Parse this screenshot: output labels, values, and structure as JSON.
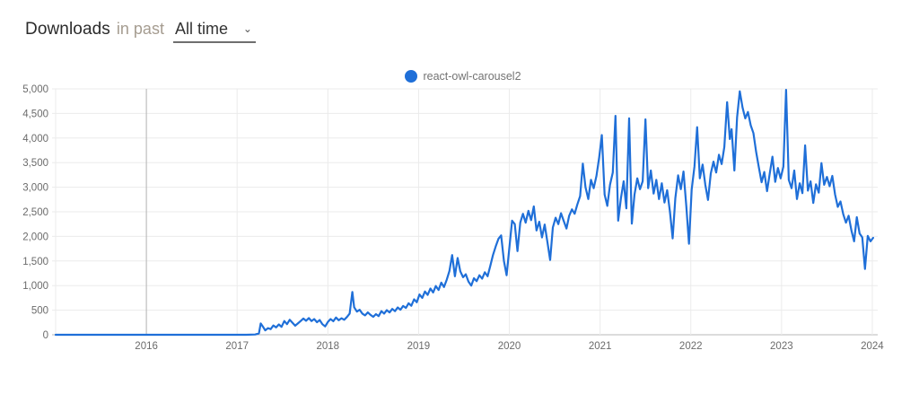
{
  "header": {
    "title": "Downloads",
    "subtitle": "in past",
    "range_value": "All time"
  },
  "legend": {
    "series_label": "react-owl-carousel2"
  },
  "colors": {
    "series_blue": "#1f6fd8",
    "axis_label": "#6b6b6b",
    "gridline": "#ebebeb",
    "gridline_emphasis": "#b3b3b3",
    "baseline": "#b9b9b9"
  },
  "chart_data": {
    "type": "line",
    "title": "",
    "xlabel": "",
    "ylabel": "",
    "xlim": [
      2015,
      2024.06
    ],
    "ylim": [
      0,
      5000
    ],
    "grid": true,
    "legend_position": "top-center",
    "x_ticks": [
      {
        "value": 2016,
        "label": "2016",
        "emphasis": true
      },
      {
        "value": 2017,
        "label": "2017",
        "emphasis": false
      },
      {
        "value": 2018,
        "label": "2018",
        "emphasis": false
      },
      {
        "value": 2019,
        "label": "2019",
        "emphasis": false
      },
      {
        "value": 2020,
        "label": "2020",
        "emphasis": false
      },
      {
        "value": 2021,
        "label": "2021",
        "emphasis": false
      },
      {
        "value": 2022,
        "label": "2022",
        "emphasis": false
      },
      {
        "value": 2023,
        "label": "2023",
        "emphasis": false
      },
      {
        "value": 2024,
        "label": "2024",
        "emphasis": false
      }
    ],
    "x_grid_extra": [
      2015
    ],
    "y_ticks": [
      {
        "value": 0,
        "label": "0"
      },
      {
        "value": 500,
        "label": "500"
      },
      {
        "value": 1000,
        "label": "1,000"
      },
      {
        "value": 1500,
        "label": "1,500"
      },
      {
        "value": 2000,
        "label": "2,000"
      },
      {
        "value": 2500,
        "label": "2,500"
      },
      {
        "value": 3000,
        "label": "3,000"
      },
      {
        "value": 3500,
        "label": "3,500"
      },
      {
        "value": 4000,
        "label": "4,000"
      },
      {
        "value": 4500,
        "label": "4,500"
      },
      {
        "value": 5000,
        "label": "5,000"
      }
    ],
    "series": [
      {
        "name": "react-owl-carousel2",
        "color": "#1f6fd8",
        "points": [
          [
            2015.0,
            0
          ],
          [
            2015.2,
            0
          ],
          [
            2015.4,
            0
          ],
          [
            2015.6,
            0
          ],
          [
            2015.8,
            0
          ],
          [
            2016.0,
            0
          ],
          [
            2016.2,
            0
          ],
          [
            2016.4,
            0
          ],
          [
            2016.6,
            0
          ],
          [
            2016.8,
            0
          ],
          [
            2017.0,
            0
          ],
          [
            2017.1,
            0
          ],
          [
            2017.2,
            5
          ],
          [
            2017.24,
            30
          ],
          [
            2017.26,
            230
          ],
          [
            2017.29,
            150
          ],
          [
            2017.31,
            90
          ],
          [
            2017.34,
            135
          ],
          [
            2017.37,
            115
          ],
          [
            2017.4,
            190
          ],
          [
            2017.43,
            150
          ],
          [
            2017.46,
            210
          ],
          [
            2017.49,
            160
          ],
          [
            2017.52,
            280
          ],
          [
            2017.55,
            215
          ],
          [
            2017.58,
            305
          ],
          [
            2017.61,
            245
          ],
          [
            2017.64,
            185
          ],
          [
            2017.67,
            230
          ],
          [
            2017.7,
            280
          ],
          [
            2017.73,
            330
          ],
          [
            2017.76,
            285
          ],
          [
            2017.79,
            340
          ],
          [
            2017.82,
            280
          ],
          [
            2017.85,
            320
          ],
          [
            2017.88,
            255
          ],
          [
            2017.91,
            300
          ],
          [
            2017.94,
            215
          ],
          [
            2017.97,
            170
          ],
          [
            2018.0,
            260
          ],
          [
            2018.03,
            320
          ],
          [
            2018.06,
            275
          ],
          [
            2018.09,
            350
          ],
          [
            2018.12,
            295
          ],
          [
            2018.15,
            335
          ],
          [
            2018.18,
            305
          ],
          [
            2018.21,
            360
          ],
          [
            2018.24,
            430
          ],
          [
            2018.27,
            870
          ],
          [
            2018.29,
            560
          ],
          [
            2018.32,
            470
          ],
          [
            2018.35,
            510
          ],
          [
            2018.38,
            430
          ],
          [
            2018.41,
            395
          ],
          [
            2018.44,
            455
          ],
          [
            2018.47,
            405
          ],
          [
            2018.5,
            365
          ],
          [
            2018.53,
            420
          ],
          [
            2018.56,
            380
          ],
          [
            2018.59,
            480
          ],
          [
            2018.62,
            430
          ],
          [
            2018.65,
            500
          ],
          [
            2018.68,
            455
          ],
          [
            2018.71,
            525
          ],
          [
            2018.74,
            480
          ],
          [
            2018.77,
            555
          ],
          [
            2018.8,
            510
          ],
          [
            2018.83,
            585
          ],
          [
            2018.86,
            545
          ],
          [
            2018.89,
            640
          ],
          [
            2018.92,
            590
          ],
          [
            2018.95,
            720
          ],
          [
            2018.98,
            660
          ],
          [
            2019.01,
            820
          ],
          [
            2019.04,
            750
          ],
          [
            2019.07,
            880
          ],
          [
            2019.1,
            810
          ],
          [
            2019.13,
            940
          ],
          [
            2019.16,
            860
          ],
          [
            2019.19,
            990
          ],
          [
            2019.22,
            910
          ],
          [
            2019.25,
            1060
          ],
          [
            2019.28,
            970
          ],
          [
            2019.31,
            1120
          ],
          [
            2019.34,
            1300
          ],
          [
            2019.37,
            1620
          ],
          [
            2019.4,
            1190
          ],
          [
            2019.43,
            1560
          ],
          [
            2019.46,
            1290
          ],
          [
            2019.49,
            1170
          ],
          [
            2019.52,
            1230
          ],
          [
            2019.55,
            1080
          ],
          [
            2019.58,
            1000
          ],
          [
            2019.61,
            1150
          ],
          [
            2019.64,
            1090
          ],
          [
            2019.67,
            1210
          ],
          [
            2019.7,
            1140
          ],
          [
            2019.73,
            1270
          ],
          [
            2019.76,
            1190
          ],
          [
            2019.79,
            1400
          ],
          [
            2019.82,
            1620
          ],
          [
            2019.85,
            1800
          ],
          [
            2019.88,
            1950
          ],
          [
            2019.91,
            2020
          ],
          [
            2019.94,
            1500
          ],
          [
            2019.97,
            1210
          ],
          [
            2020.0,
            1760
          ],
          [
            2020.03,
            2320
          ],
          [
            2020.06,
            2250
          ],
          [
            2020.09,
            1700
          ],
          [
            2020.12,
            2280
          ],
          [
            2020.15,
            2460
          ],
          [
            2020.18,
            2280
          ],
          [
            2020.21,
            2520
          ],
          [
            2020.24,
            2330
          ],
          [
            2020.27,
            2610
          ],
          [
            2020.3,
            2120
          ],
          [
            2020.33,
            2300
          ],
          [
            2020.36,
            1980
          ],
          [
            2020.39,
            2240
          ],
          [
            2020.42,
            1880
          ],
          [
            2020.45,
            1520
          ],
          [
            2020.48,
            2180
          ],
          [
            2020.51,
            2380
          ],
          [
            2020.54,
            2250
          ],
          [
            2020.57,
            2470
          ],
          [
            2020.6,
            2310
          ],
          [
            2020.63,
            2160
          ],
          [
            2020.66,
            2420
          ],
          [
            2020.69,
            2550
          ],
          [
            2020.72,
            2460
          ],
          [
            2020.75,
            2650
          ],
          [
            2020.78,
            2820
          ],
          [
            2020.81,
            3480
          ],
          [
            2020.84,
            3000
          ],
          [
            2020.87,
            2760
          ],
          [
            2020.9,
            3150
          ],
          [
            2020.93,
            2980
          ],
          [
            2020.96,
            3230
          ],
          [
            2020.99,
            3600
          ],
          [
            2021.02,
            4060
          ],
          [
            2021.05,
            2850
          ],
          [
            2021.08,
            2620
          ],
          [
            2021.11,
            3050
          ],
          [
            2021.14,
            3300
          ],
          [
            2021.17,
            4450
          ],
          [
            2021.2,
            2320
          ],
          [
            2021.23,
            2780
          ],
          [
            2021.26,
            3120
          ],
          [
            2021.29,
            2570
          ],
          [
            2021.32,
            4400
          ],
          [
            2021.35,
            2260
          ],
          [
            2021.38,
            2850
          ],
          [
            2021.41,
            3180
          ],
          [
            2021.44,
            2960
          ],
          [
            2021.47,
            3120
          ],
          [
            2021.5,
            4380
          ],
          [
            2021.53,
            2980
          ],
          [
            2021.56,
            3340
          ],
          [
            2021.59,
            2870
          ],
          [
            2021.62,
            3150
          ],
          [
            2021.65,
            2760
          ],
          [
            2021.68,
            3080
          ],
          [
            2021.71,
            2690
          ],
          [
            2021.74,
            2940
          ],
          [
            2021.77,
            2500
          ],
          [
            2021.8,
            1960
          ],
          [
            2021.83,
            2780
          ],
          [
            2021.86,
            3240
          ],
          [
            2021.89,
            2960
          ],
          [
            2021.92,
            3320
          ],
          [
            2021.95,
            2620
          ],
          [
            2021.98,
            1850
          ],
          [
            2022.01,
            2950
          ],
          [
            2022.04,
            3420
          ],
          [
            2022.07,
            4220
          ],
          [
            2022.1,
            3180
          ],
          [
            2022.13,
            3460
          ],
          [
            2022.16,
            3050
          ],
          [
            2022.19,
            2740
          ],
          [
            2022.22,
            3280
          ],
          [
            2022.25,
            3520
          ],
          [
            2022.28,
            3300
          ],
          [
            2022.31,
            3660
          ],
          [
            2022.34,
            3470
          ],
          [
            2022.37,
            3820
          ],
          [
            2022.4,
            4730
          ],
          [
            2022.43,
            3980
          ],
          [
            2022.45,
            4180
          ],
          [
            2022.48,
            3340
          ],
          [
            2022.51,
            4420
          ],
          [
            2022.54,
            4950
          ],
          [
            2022.57,
            4620
          ],
          [
            2022.6,
            4400
          ],
          [
            2022.63,
            4530
          ],
          [
            2022.66,
            4260
          ],
          [
            2022.69,
            4100
          ],
          [
            2022.72,
            3720
          ],
          [
            2022.75,
            3400
          ],
          [
            2022.78,
            3100
          ],
          [
            2022.81,
            3310
          ],
          [
            2022.84,
            2920
          ],
          [
            2022.87,
            3280
          ],
          [
            2022.9,
            3620
          ],
          [
            2022.93,
            3110
          ],
          [
            2022.96,
            3390
          ],
          [
            2022.99,
            3180
          ],
          [
            2023.02,
            3420
          ],
          [
            2023.05,
            4980
          ],
          [
            2023.08,
            3150
          ],
          [
            2023.11,
            2980
          ],
          [
            2023.14,
            3340
          ],
          [
            2023.17,
            2760
          ],
          [
            2023.2,
            3080
          ],
          [
            2023.23,
            2880
          ],
          [
            2023.26,
            3850
          ],
          [
            2023.29,
            2930
          ],
          [
            2023.32,
            3120
          ],
          [
            2023.35,
            2680
          ],
          [
            2023.38,
            3060
          ],
          [
            2023.41,
            2890
          ],
          [
            2023.44,
            3490
          ],
          [
            2023.47,
            3050
          ],
          [
            2023.5,
            3210
          ],
          [
            2023.53,
            3020
          ],
          [
            2023.56,
            3230
          ],
          [
            2023.59,
            2850
          ],
          [
            2023.62,
            2600
          ],
          [
            2023.65,
            2710
          ],
          [
            2023.68,
            2450
          ],
          [
            2023.71,
            2280
          ],
          [
            2023.74,
            2420
          ],
          [
            2023.77,
            2120
          ],
          [
            2023.8,
            1900
          ],
          [
            2023.83,
            2390
          ],
          [
            2023.86,
            2060
          ],
          [
            2023.89,
            1980
          ],
          [
            2023.92,
            1340
          ],
          [
            2023.95,
            2010
          ],
          [
            2023.98,
            1900
          ],
          [
            2024.01,
            1970
          ]
        ]
      }
    ]
  }
}
